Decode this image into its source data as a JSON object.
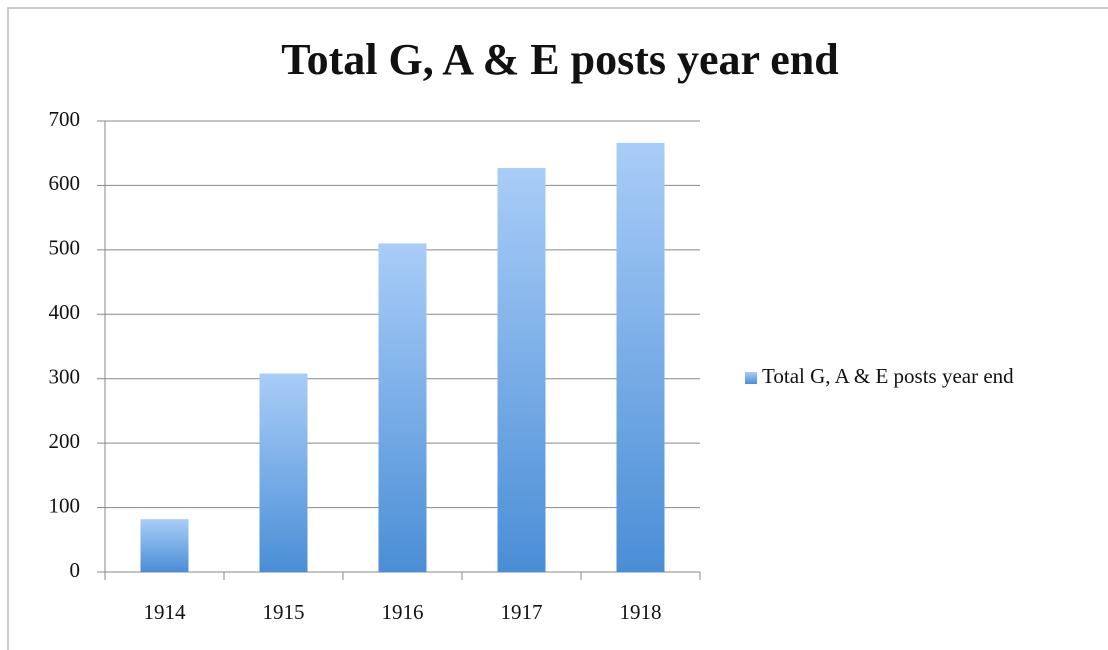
{
  "chart_data": {
    "type": "bar",
    "title": "Total G, A & E posts year end",
    "categories": [
      "1914",
      "1915",
      "1916",
      "1917",
      "1918"
    ],
    "series": [
      {
        "name": "Total G, A & E posts year end",
        "color": "#6fa6e6",
        "gradient": [
          "#a9cdf8",
          "#4a8ed6"
        ],
        "values": [
          82,
          308,
          510,
          627,
          666
        ]
      }
    ],
    "ylim": [
      0,
      700
    ],
    "yticks": [
      0,
      100,
      200,
      300,
      400,
      500,
      600,
      700
    ],
    "grid": true,
    "legend": "right"
  }
}
